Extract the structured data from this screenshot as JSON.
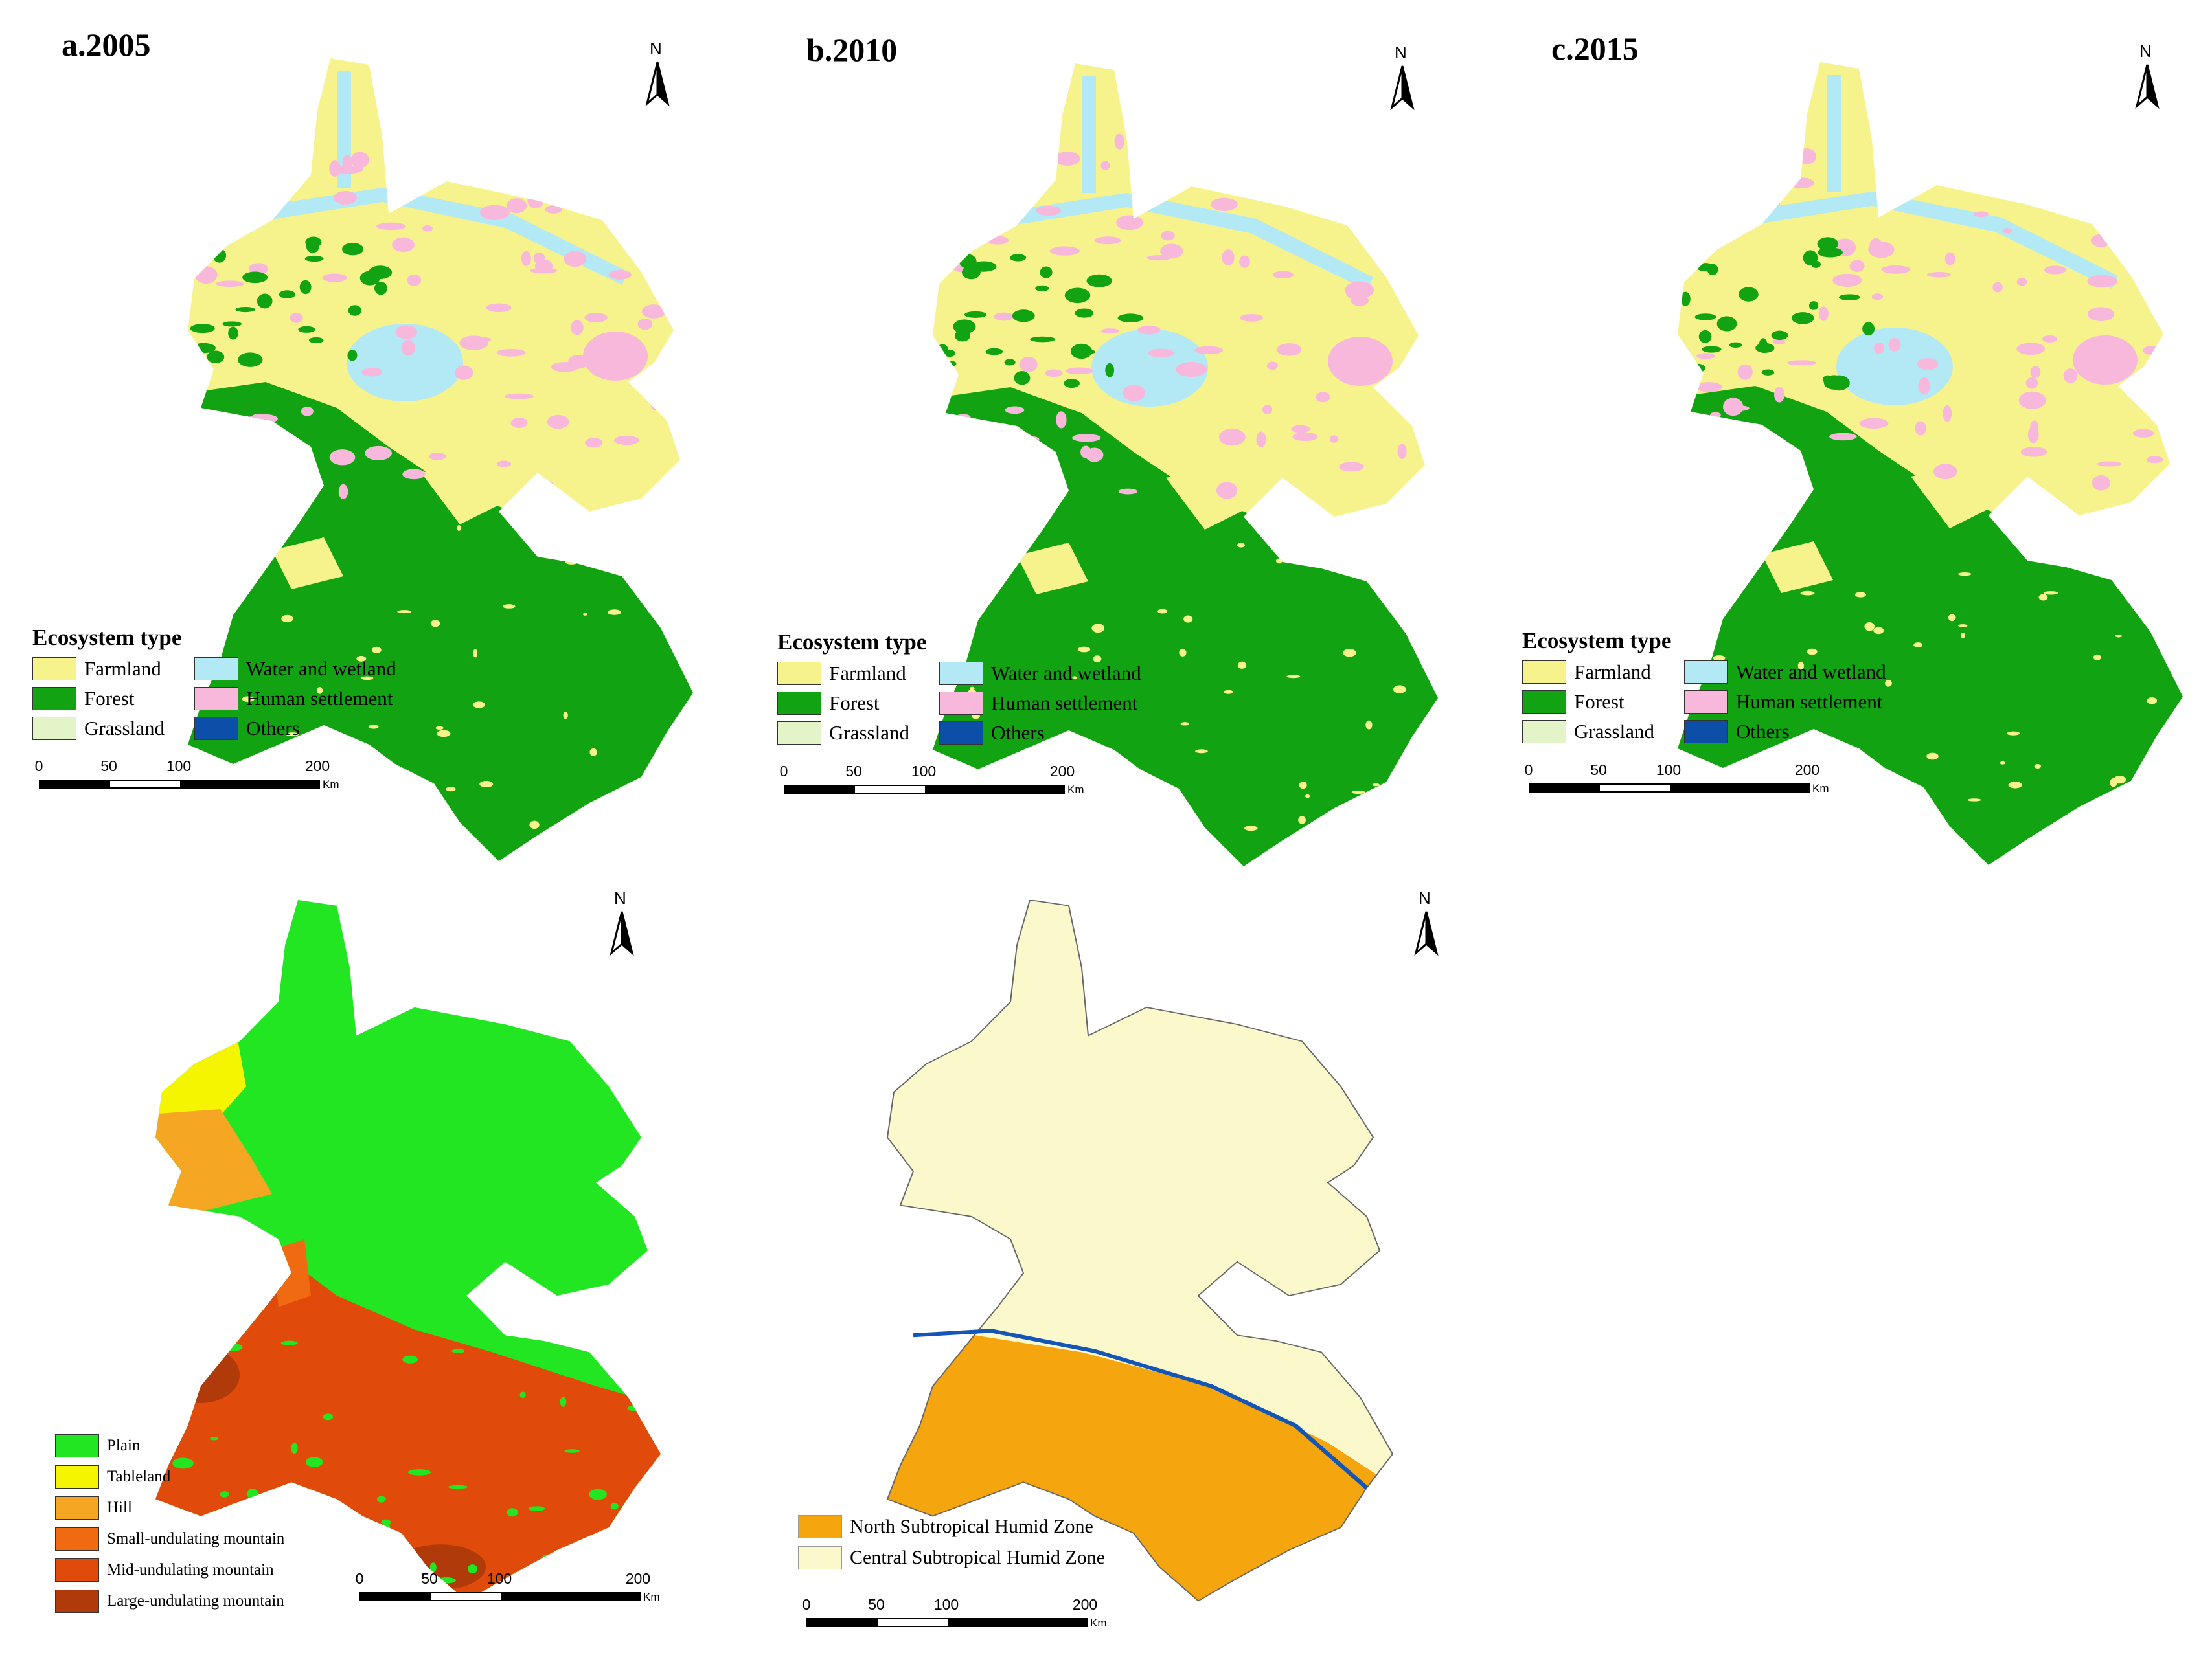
{
  "panels": [
    {
      "title": "a.2005",
      "north": "N"
    },
    {
      "title": "b.2010",
      "north": "N"
    },
    {
      "title": "c.2015",
      "north": "N"
    }
  ],
  "ecosystem_legend": {
    "title": "Ecosystem type",
    "items": [
      {
        "label": "Farmland",
        "color": "#f7f38c"
      },
      {
        "label": "Water and wetland",
        "color": "#b3e8f5"
      },
      {
        "label": "Forest",
        "color": "#12a312"
      },
      {
        "label": "Human settlement",
        "color": "#f7b8dc"
      },
      {
        "label": "Grassland",
        "color": "#e3f5c8"
      },
      {
        "label": "Others",
        "color": "#0b4fa8"
      }
    ]
  },
  "landform_map": {
    "north": "N",
    "legend": [
      {
        "label": "Plain",
        "color": "#21e621"
      },
      {
        "label": "Tableland",
        "color": "#f5f500"
      },
      {
        "label": "Hill",
        "color": "#f5a623"
      },
      {
        "label": "Small-undulating mountain",
        "color": "#f06a12"
      },
      {
        "label": "Mid-undulating mountain",
        "color": "#e04a0a"
      },
      {
        "label": "Large-undulating mountain",
        "color": "#b03a0a"
      }
    ]
  },
  "climate_map": {
    "north": "N",
    "legend": [
      {
        "label": "North Subtropical Humid Zone",
        "color": "#f5a50d"
      },
      {
        "label": "Central Subtropical Humid Zone",
        "color": "#fbf9cc"
      }
    ],
    "boundary_color": "#1456b8"
  },
  "scale_bar": {
    "ticks": [
      "0",
      "50",
      "100",
      "200"
    ],
    "unit": "Km"
  }
}
